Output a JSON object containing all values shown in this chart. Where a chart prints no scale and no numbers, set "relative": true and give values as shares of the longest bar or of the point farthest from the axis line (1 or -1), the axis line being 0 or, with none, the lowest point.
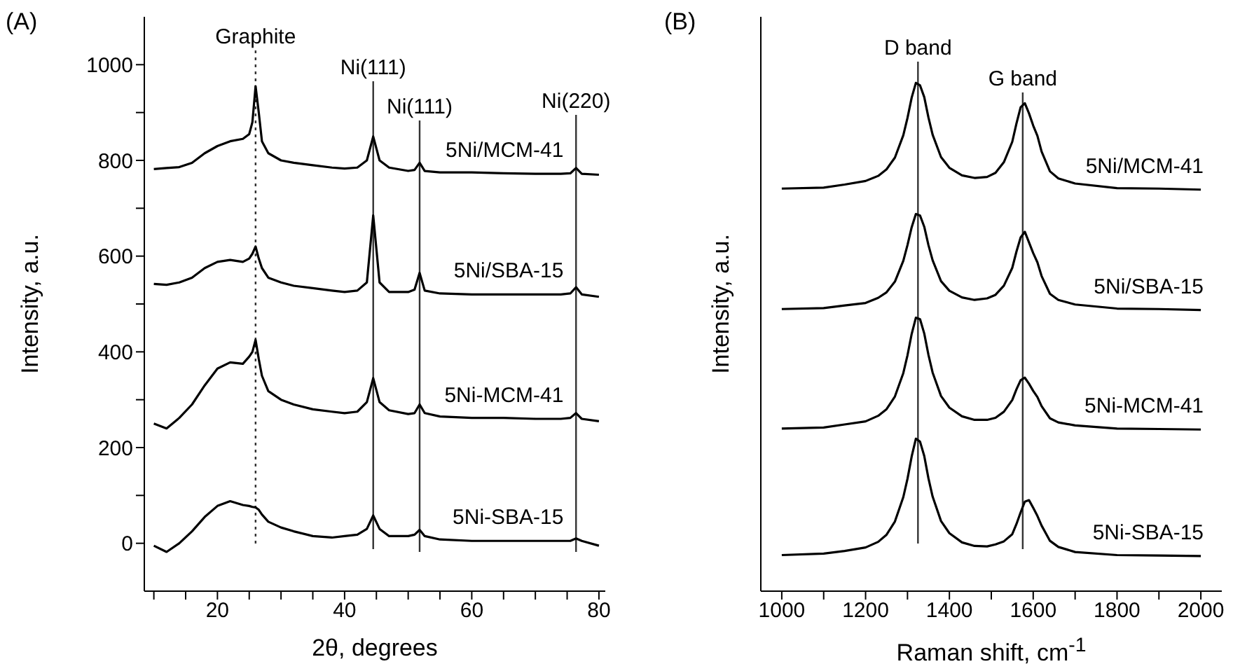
{
  "chart_data": [
    {
      "type": "line",
      "title": "(A)",
      "xlabel": "2θ, degrees",
      "ylabel": "Intensity, a.u.",
      "xlim": [
        8.5,
        81
      ],
      "xticks": [
        {
          "value": 10,
          "label": null
        },
        {
          "value": 15,
          "label": null
        },
        20,
        {
          "value": 25,
          "label": null
        },
        {
          "value": 30,
          "label": null
        },
        {
          "value": 35,
          "label": null
        },
        40,
        {
          "value": 45,
          "label": null
        },
        {
          "value": 50,
          "label": null
        },
        {
          "value": 55,
          "label": null
        },
        60,
        {
          "value": 65,
          "label": null
        },
        {
          "value": 70,
          "label": null
        },
        {
          "value": 75,
          "label": null
        },
        80
      ],
      "ylim": [
        -100,
        1100
      ],
      "yticks": [
        0,
        {
          "value": 100,
          "label": null
        },
        200,
        {
          "value": 300,
          "label": null
        },
        400,
        {
          "value": 500,
          "label": null
        },
        600,
        {
          "value": 700,
          "label": null
        },
        800,
        {
          "value": 900,
          "label": null
        },
        1000
      ],
      "x": [
        10,
        12,
        14,
        16,
        18,
        20,
        22,
        24,
        25,
        25.5,
        26,
        26.5,
        27,
        28,
        30,
        32,
        35,
        38,
        40,
        42,
        43.5,
        44.5,
        45.5,
        47,
        50,
        51,
        51.8,
        52.6,
        55,
        60,
        65,
        70,
        74,
        75.5,
        76.4,
        77.3,
        80
      ],
      "series": [
        {
          "name": "5Ni/MCM-41",
          "color": "#000000",
          "values": [
            782,
            784,
            786,
            795,
            815,
            830,
            840,
            845,
            855,
            880,
            955,
            900,
            840,
            815,
            800,
            795,
            790,
            785,
            783,
            785,
            800,
            850,
            800,
            785,
            778,
            780,
            795,
            778,
            775,
            775,
            773,
            772,
            772,
            773,
            784,
            772,
            770
          ]
        },
        {
          "name": "5Ni/SBA-15",
          "color": "#000000",
          "values": [
            542,
            540,
            545,
            555,
            575,
            588,
            592,
            588,
            595,
            605,
            620,
            595,
            575,
            555,
            545,
            538,
            533,
            528,
            525,
            528,
            545,
            685,
            545,
            525,
            525,
            530,
            565,
            528,
            522,
            520,
            520,
            520,
            520,
            522,
            535,
            520,
            515
          ]
        },
        {
          "name": "5Ni-MCM-41",
          "color": "#000000",
          "values": [
            250,
            240,
            262,
            290,
            330,
            365,
            378,
            375,
            390,
            400,
            425,
            385,
            350,
            318,
            300,
            290,
            280,
            275,
            272,
            275,
            295,
            345,
            295,
            278,
            270,
            272,
            290,
            272,
            265,
            262,
            262,
            260,
            260,
            262,
            272,
            260,
            255
          ]
        },
        {
          "name": "5Ni-SBA-15",
          "color": "#000000",
          "values": [
            -5,
            -18,
            0,
            25,
            55,
            78,
            88,
            80,
            78,
            76,
            75,
            70,
            60,
            45,
            33,
            25,
            15,
            12,
            15,
            18,
            30,
            58,
            30,
            15,
            15,
            18,
            28,
            15,
            8,
            5,
            5,
            5,
            5,
            5,
            10,
            5,
            -5
          ]
        }
      ],
      "ref_lines": [
        {
          "axis": "x",
          "value": 26,
          "label": "Graphite",
          "color": "#333333",
          "line_style": "dotted"
        },
        {
          "axis": "x",
          "value": 44.5,
          "label": "Ni(111)",
          "color": "#333333",
          "line_style": "solid"
        },
        {
          "axis": "x",
          "value": 51.8,
          "label": "Ni(111)",
          "color": "#333333",
          "line_style": "solid"
        },
        {
          "axis": "x",
          "value": 76.4,
          "label": "Ni(220)",
          "color": "#333333",
          "line_style": "solid"
        }
      ]
    },
    {
      "type": "line",
      "title": "(B)",
      "xlabel": "Raman shift, cm$^{-1}$",
      "ylabel": "Intensity, a.u.",
      "relative": true,
      "tick_labels": "x",
      "xlim": [
        950,
        2050
      ],
      "xticks": [
        1000,
        {
          "value": 1100,
          "label": null
        },
        1200,
        {
          "value": 1300,
          "label": null
        },
        1400,
        {
          "value": 1500,
          "label": null
        },
        1600,
        {
          "value": 1700,
          "label": null
        },
        1800,
        {
          "value": 1900,
          "label": null
        },
        2000
      ],
      "x": [
        1000,
        1100,
        1150,
        1200,
        1230,
        1250,
        1270,
        1290,
        1300,
        1310,
        1320,
        1330,
        1340,
        1350,
        1360,
        1380,
        1400,
        1430,
        1460,
        1490,
        1510,
        1530,
        1550,
        1560,
        1570,
        1580,
        1590,
        1600,
        1610,
        1620,
        1640,
        1660,
        1700,
        1800,
        1900,
        2000
      ],
      "series": [
        {
          "name": "5Ni/MCM-41",
          "color": "#000000",
          "values": [
            0.792,
            0.794,
            0.8,
            0.807,
            0.817,
            0.83,
            0.853,
            0.897,
            0.931,
            0.971,
            1,
            0.995,
            0.972,
            0.932,
            0.898,
            0.854,
            0.833,
            0.818,
            0.813,
            0.815,
            0.823,
            0.844,
            0.884,
            0.92,
            0.952,
            0.96,
            0.94,
            0.916,
            0.896,
            0.865,
            0.826,
            0.812,
            0.802,
            0.793,
            0.792,
            0.79
          ]
        },
        {
          "name": "5Ni/SBA-15",
          "color": "#000000",
          "values": [
            0.555,
            0.557,
            0.562,
            0.567,
            0.577,
            0.588,
            0.609,
            0.65,
            0.681,
            0.716,
            0.742,
            0.739,
            0.717,
            0.681,
            0.651,
            0.61,
            0.591,
            0.578,
            0.573,
            0.576,
            0.583,
            0.601,
            0.636,
            0.668,
            0.696,
            0.707,
            0.686,
            0.665,
            0.647,
            0.62,
            0.585,
            0.573,
            0.564,
            0.556,
            0.555,
            0.553
          ]
        },
        {
          "name": "5Ni-MCM-41",
          "color": "#000000",
          "values": [
            0.32,
            0.322,
            0.328,
            0.334,
            0.345,
            0.358,
            0.383,
            0.429,
            0.464,
            0.506,
            0.538,
            0.535,
            0.507,
            0.465,
            0.43,
            0.384,
            0.361,
            0.344,
            0.337,
            0.337,
            0.341,
            0.353,
            0.376,
            0.397,
            0.415,
            0.42,
            0.408,
            0.394,
            0.382,
            0.364,
            0.34,
            0.332,
            0.326,
            0.32,
            0.319,
            0.318
          ]
        },
        {
          "name": "5Ni-SBA-15",
          "color": "#000000",
          "values": [
            0.071,
            0.074,
            0.079,
            0.086,
            0.097,
            0.111,
            0.137,
            0.185,
            0.221,
            0.265,
            0.3,
            0.294,
            0.266,
            0.222,
            0.186,
            0.138,
            0.114,
            0.096,
            0.089,
            0.088,
            0.092,
            0.098,
            0.112,
            0.132,
            0.155,
            0.176,
            0.179,
            0.164,
            0.148,
            0.129,
            0.099,
            0.087,
            0.077,
            0.071,
            0.07,
            0.069
          ]
        }
      ],
      "ref_lines": [
        {
          "axis": "x",
          "value": 1325,
          "label": "D band",
          "color": "#333333",
          "line_style": "solid"
        },
        {
          "axis": "x",
          "value": 1575,
          "label": "G band",
          "color": "#333333",
          "line_style": "solid"
        }
      ]
    }
  ]
}
